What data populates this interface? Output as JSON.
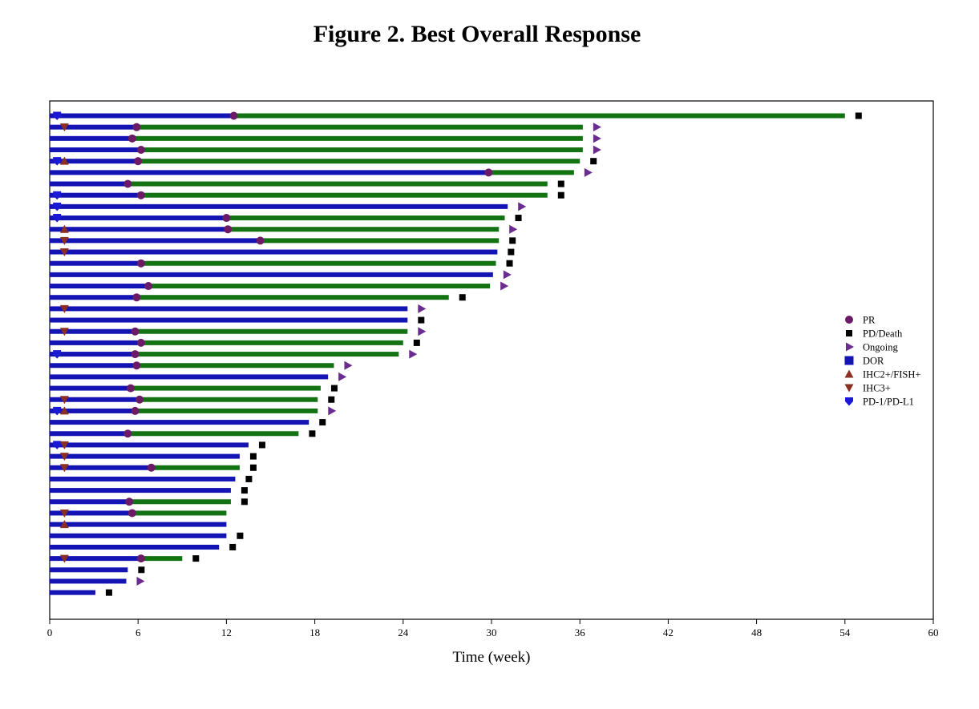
{
  "title": "Figure 2.  Best Overall Response",
  "chart_data": {
    "type": "bar",
    "orientation": "horizontal swimmer plot",
    "xlabel": "Time (week)",
    "ylabel": "",
    "xlim": [
      0,
      60
    ],
    "xticks": [
      0,
      6,
      12,
      18,
      24,
      30,
      36,
      42,
      48,
      54,
      60
    ],
    "grid": false,
    "legend_position": "right",
    "colors": {
      "dor": "#1414b4",
      "response": "#137313",
      "pr": "#6a1a66",
      "pd": "#000000",
      "ongoing": "#6b2c8f",
      "ihc2": "#8b2e24",
      "ihc3": "#8b2e24",
      "pd1": "#1a1ad6"
    },
    "legend": [
      {
        "key": "pr",
        "label": "PR"
      },
      {
        "key": "pd",
        "label": "PD/Death"
      },
      {
        "key": "ongoing",
        "label": "Ongoing"
      },
      {
        "key": "dor",
        "label": "DOR"
      },
      {
        "key": "ihc2",
        "label": "IHC2+/FISH+"
      },
      {
        "key": "ihc3",
        "label": "IHC3+"
      },
      {
        "key": "pd1",
        "label": "PD-1/PD-L1"
      }
    ],
    "patients": [
      {
        "end": 54,
        "pr": 12.5,
        "outcome": "pd",
        "marker": "pd1"
      },
      {
        "end": 36.2,
        "pr": 5.9,
        "outcome": "ongoing",
        "marker": "ihc3"
      },
      {
        "end": 36.2,
        "pr": 5.6,
        "outcome": "ongoing"
      },
      {
        "end": 36.2,
        "pr": 6.2,
        "outcome": "ongoing"
      },
      {
        "end": 36.0,
        "pr": 6.0,
        "outcome": "pd",
        "marker": "pd1",
        "marker2": "ihc2"
      },
      {
        "end": 35.6,
        "pr": 29.8,
        "outcome": "ongoing"
      },
      {
        "end": 33.8,
        "pr": 5.3,
        "outcome": "pd"
      },
      {
        "end": 33.8,
        "pr": 6.2,
        "outcome": "pd",
        "marker": "pd1"
      },
      {
        "end": 31.1,
        "outcome": "ongoing",
        "marker": "pd1"
      },
      {
        "end": 30.9,
        "pr": 12.0,
        "outcome": "pd",
        "marker": "pd1"
      },
      {
        "end": 30.5,
        "pr": 12.1,
        "outcome": "ongoing",
        "marker": "ihc2"
      },
      {
        "end": 30.5,
        "pr": 14.3,
        "outcome": "pd",
        "marker": "ihc3"
      },
      {
        "end": 30.4,
        "outcome": "pd",
        "marker": "ihc3"
      },
      {
        "end": 30.3,
        "pr": 6.2,
        "outcome": "pd"
      },
      {
        "end": 30.1,
        "outcome": "ongoing"
      },
      {
        "end": 29.9,
        "pr": 6.7,
        "outcome": "ongoing"
      },
      {
        "end": 27.1,
        "pr": 5.9,
        "outcome": "pd"
      },
      {
        "end": 24.3,
        "outcome": "ongoing",
        "marker": "ihc3"
      },
      {
        "end": 24.3,
        "outcome": "pd"
      },
      {
        "end": 24.3,
        "pr": 5.8,
        "outcome": "ongoing",
        "marker": "ihc3"
      },
      {
        "end": 24.0,
        "pr": 6.2,
        "outcome": "pd"
      },
      {
        "end": 23.7,
        "pr": 5.8,
        "outcome": "ongoing",
        "marker": "pd1"
      },
      {
        "end": 19.3,
        "pr": 5.9,
        "outcome": "ongoing"
      },
      {
        "end": 18.9,
        "outcome": "ongoing"
      },
      {
        "end": 18.4,
        "pr": 5.5,
        "outcome": "pd"
      },
      {
        "end": 18.2,
        "pr": 6.1,
        "outcome": "pd",
        "marker": "ihc3"
      },
      {
        "end": 18.2,
        "pr": 5.8,
        "outcome": "ongoing",
        "marker": "pd1",
        "marker2": "ihc2"
      },
      {
        "end": 17.6,
        "outcome": "pd"
      },
      {
        "end": 16.9,
        "pr": 5.3,
        "outcome": "pd"
      },
      {
        "end": 13.5,
        "outcome": "pd",
        "marker": "pd1",
        "marker2": "ihc3"
      },
      {
        "end": 12.9,
        "outcome": "pd",
        "marker": "ihc3"
      },
      {
        "end": 12.9,
        "pr": 6.9,
        "outcome": "pd",
        "marker": "ihc3"
      },
      {
        "end": 12.6,
        "outcome": "pd"
      },
      {
        "end": 12.3,
        "outcome": "pd"
      },
      {
        "end": 12.3,
        "pr": 5.4,
        "outcome": "pd"
      },
      {
        "end": 12.0,
        "pr": 5.6,
        "outcome": "",
        "marker": "ihc3"
      },
      {
        "end": 12.0,
        "outcome": "",
        "marker": "ihc2"
      },
      {
        "end": 12.0,
        "outcome": "pd"
      },
      {
        "end": 11.5,
        "outcome": "pd"
      },
      {
        "end": 9.0,
        "pr": 6.2,
        "outcome": "pd",
        "marker": "ihc3"
      },
      {
        "end": 5.3,
        "outcome": "pd"
      },
      {
        "end": 5.2,
        "outcome": "ongoing"
      },
      {
        "end": 3.1,
        "outcome": "pd"
      }
    ]
  }
}
